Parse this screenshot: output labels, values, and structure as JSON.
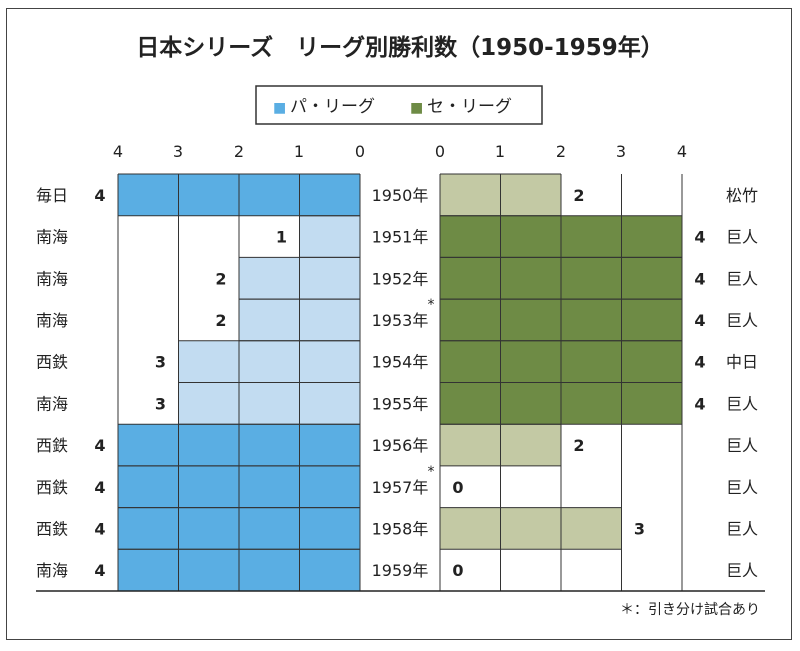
{
  "chart_data": {
    "type": "bar",
    "title": "日本シリーズ　リーグ別勝利数（1950-1959年）",
    "legend": {
      "position": "top-center",
      "items": [
        {
          "symbol": "■",
          "label": "パ・リーグ",
          "color": "#5aaee3"
        },
        {
          "symbol": "■",
          "label": "セ・リーグ",
          "color": "#6e8b45"
        }
      ]
    },
    "left_axis_ticks": [
      "4",
      "3",
      "2",
      "1",
      "0"
    ],
    "right_axis_ticks": [
      "0",
      "1",
      "2",
      "3",
      "4"
    ],
    "xlim": [
      0,
      4
    ],
    "colors": {
      "pa_winner": "#5aaee3",
      "pa_loser": "#c2dcf1",
      "ce_winner": "#6e8b45",
      "ce_loser": "#c3c9a4",
      "grid": "#333333"
    },
    "categories": [
      "1950年",
      "1951年",
      "1952年",
      "1953年",
      "1954年",
      "1955年",
      "1956年",
      "1957年",
      "1958年",
      "1959年"
    ],
    "draw_marker": "*",
    "series": [
      {
        "name": "パ・リーグ",
        "values": [
          4,
          1,
          2,
          2,
          3,
          3,
          4,
          4,
          4,
          4
        ]
      },
      {
        "name": "セ・リーグ",
        "values": [
          2,
          4,
          4,
          4,
          4,
          4,
          2,
          0,
          3,
          0
        ]
      }
    ],
    "rows": [
      {
        "year": "1950年",
        "draw": false,
        "pa_team": "毎日",
        "pa_wins": 4,
        "ce_team": "松竹",
        "ce_wins": 2,
        "winner": "pa"
      },
      {
        "year": "1951年",
        "draw": false,
        "pa_team": "南海",
        "pa_wins": 1,
        "ce_team": "巨人",
        "ce_wins": 4,
        "winner": "ce"
      },
      {
        "year": "1952年",
        "draw": false,
        "pa_team": "南海",
        "pa_wins": 2,
        "ce_team": "巨人",
        "ce_wins": 4,
        "winner": "ce"
      },
      {
        "year": "1953年",
        "draw": true,
        "pa_team": "南海",
        "pa_wins": 2,
        "ce_team": "巨人",
        "ce_wins": 4,
        "winner": "ce"
      },
      {
        "year": "1954年",
        "draw": false,
        "pa_team": "西鉄",
        "pa_wins": 3,
        "ce_team": "中日",
        "ce_wins": 4,
        "winner": "ce"
      },
      {
        "year": "1955年",
        "draw": false,
        "pa_team": "南海",
        "pa_wins": 3,
        "ce_team": "巨人",
        "ce_wins": 4,
        "winner": "ce"
      },
      {
        "year": "1956年",
        "draw": false,
        "pa_team": "西鉄",
        "pa_wins": 4,
        "ce_team": "巨人",
        "ce_wins": 2,
        "winner": "pa"
      },
      {
        "year": "1957年",
        "draw": true,
        "pa_team": "西鉄",
        "pa_wins": 4,
        "ce_team": "巨人",
        "ce_wins": 0,
        "winner": "pa"
      },
      {
        "year": "1958年",
        "draw": false,
        "pa_team": "西鉄",
        "pa_wins": 4,
        "ce_team": "巨人",
        "ce_wins": 3,
        "winner": "pa"
      },
      {
        "year": "1959年",
        "draw": false,
        "pa_team": "南海",
        "pa_wins": 4,
        "ce_team": "巨人",
        "ce_wins": 0,
        "winner": "pa"
      }
    ],
    "footnote": "＊：引き分け試合あり",
    "grid": true
  }
}
